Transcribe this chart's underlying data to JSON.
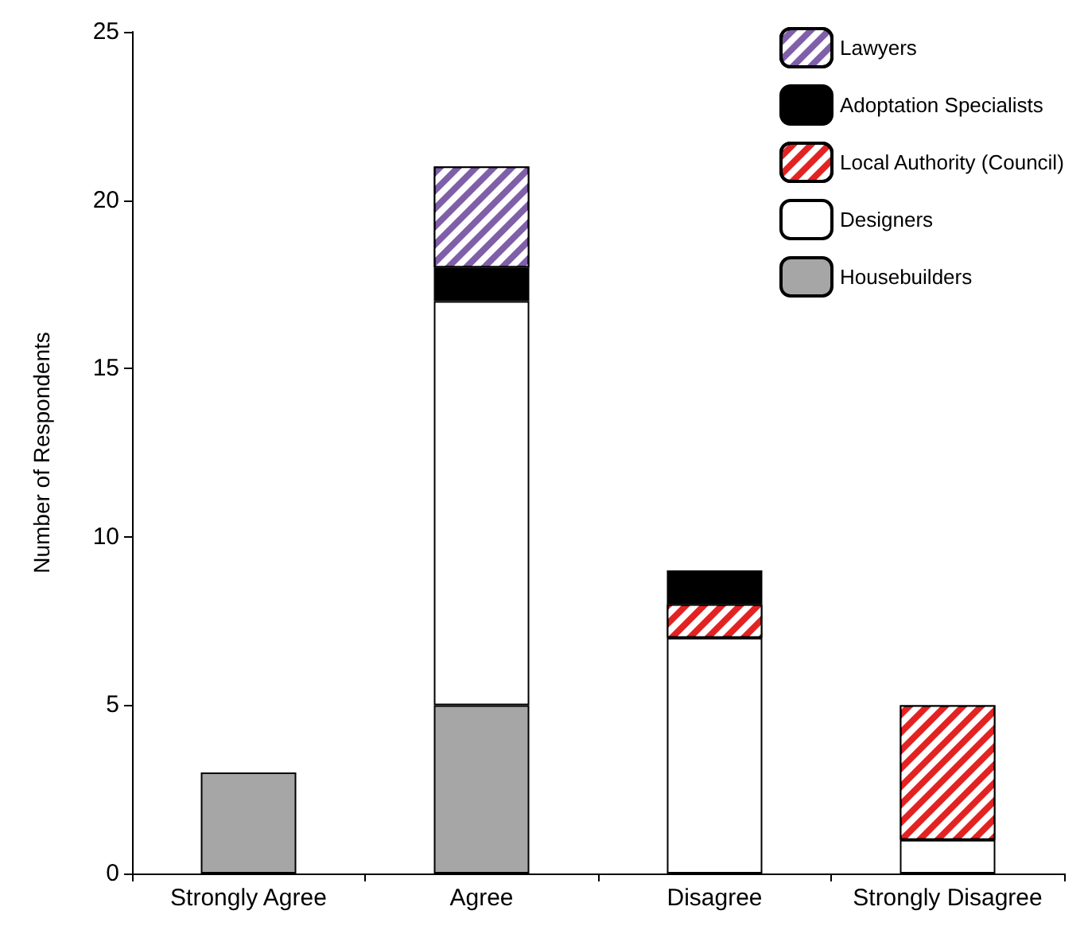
{
  "chart_data": {
    "type": "bar",
    "stacked": true,
    "ylabel": "Number of Respondents",
    "categories": [
      "Strongly Agree",
      "Agree",
      "Disagree",
      "Strongly Disagree"
    ],
    "series": [
      {
        "name": "Housebuilders",
        "color": "#a6a6a6",
        "values": [
          3,
          5,
          null,
          null
        ]
      },
      {
        "name": "Designers",
        "color": "#ffffff",
        "values": [
          null,
          12,
          7,
          1
        ]
      },
      {
        "name": "Local Authority (Council)",
        "color": "#e32222",
        "values": [
          null,
          null,
          1,
          4
        ]
      },
      {
        "name": "Adoptation Specialists",
        "color": "#000000",
        "values": [
          null,
          1,
          1,
          null
        ]
      },
      {
        "name": "Lawyers",
        "color": "#7f5fa8",
        "values": [
          null,
          3,
          null,
          null
        ]
      }
    ],
    "ylim": [
      0,
      25
    ],
    "yticks": [
      0,
      5,
      10,
      15,
      20,
      25
    ],
    "grid": false,
    "legend": "top right"
  }
}
